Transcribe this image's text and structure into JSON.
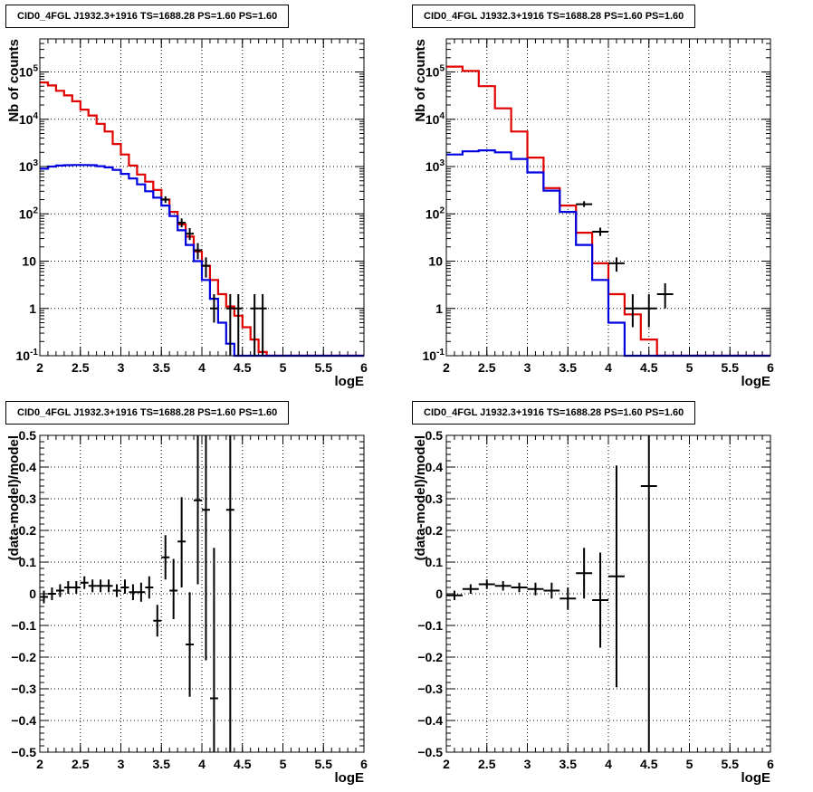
{
  "chart_data": [
    {
      "type": "step",
      "title": "CID0_4FGL J1932.3+1916 TS=1688.28 PS=1.60 PS=1.60",
      "xlabel": "logE",
      "ylabel": "Nb of counts",
      "xlim": [
        2,
        6
      ],
      "ylim": [
        0.1,
        500000
      ],
      "yscale": "log",
      "grid": true,
      "x_ticks": [
        "2",
        "2.5",
        "3",
        "3.5",
        "4",
        "4.5",
        "5",
        "5.5",
        "6"
      ],
      "y_ticks": [
        {
          "v": 0.1,
          "t": "10",
          "sup": "-1"
        },
        {
          "v": 1,
          "t": "1",
          "sup": ""
        },
        {
          "v": 10,
          "t": "10",
          "sup": ""
        },
        {
          "v": 100,
          "t": "10",
          "sup": "2"
        },
        {
          "v": 1000,
          "t": "10",
          "sup": "3"
        },
        {
          "v": 10000,
          "t": "10",
          "sup": "4"
        },
        {
          "v": 100000,
          "t": "10",
          "sup": "5"
        }
      ],
      "series": [
        {
          "color": "#e00000",
          "kind": "step",
          "edges": [
            2.0,
            2.1,
            2.2,
            2.3,
            2.4,
            2.5,
            2.6,
            2.7,
            2.8,
            2.9,
            3.0,
            3.1,
            3.2,
            3.3,
            3.4,
            3.5,
            3.6,
            3.7,
            3.8,
            3.9,
            4.0,
            4.1,
            4.2,
            4.3,
            4.4,
            4.5,
            4.6,
            4.7,
            4.8,
            4.9,
            5.0,
            5.1,
            5.2,
            5.3,
            5.4,
            5.5,
            5.6,
            5.7,
            5.8,
            5.9,
            6.0
          ],
          "values": [
            60000,
            52000,
            40000,
            32000,
            24000,
            16000,
            12000,
            8000,
            5500,
            3000,
            1800,
            1050,
            680,
            480,
            320,
            200,
            110,
            60,
            33,
            16,
            8,
            4,
            2.0,
            1.1,
            0.7,
            0.4,
            0.22,
            0.12,
            0.1,
            0.1,
            0.1,
            0.1,
            0.1,
            0.1,
            0.1,
            0.1,
            0.1,
            0.1,
            0.1,
            0.1
          ]
        },
        {
          "color": "#0000e0",
          "kind": "step",
          "edges": [
            2.0,
            2.1,
            2.2,
            2.3,
            2.4,
            2.5,
            2.6,
            2.7,
            2.8,
            2.9,
            3.0,
            3.1,
            3.2,
            3.3,
            3.4,
            3.5,
            3.6,
            3.7,
            3.8,
            3.9,
            4.0,
            4.1,
            4.2,
            4.3,
            4.4,
            4.5,
            4.6,
            4.7,
            4.8,
            4.9,
            5.0,
            5.1,
            5.2,
            5.3,
            5.4,
            5.5,
            5.6,
            5.7,
            5.8,
            5.9,
            6.0
          ],
          "values": [
            900,
            1000,
            1050,
            1070,
            1080,
            1080,
            1070,
            1020,
            960,
            850,
            700,
            560,
            420,
            300,
            220,
            150,
            90,
            45,
            22,
            10,
            4,
            1.6,
            0.5,
            0.18,
            0.1,
            0.1,
            0.1,
            0.1,
            0.1,
            0.1,
            0.1,
            0.1,
            0.1,
            0.1,
            0.1,
            0.1,
            0.1,
            0.1,
            0.1,
            0.1
          ]
        },
        {
          "color": "#000000",
          "kind": "points",
          "points": [
            {
              "x": 3.55,
              "y": 200,
              "xerr": 0.05,
              "ylo": 170,
              "yhi": 235
            },
            {
              "x": 3.75,
              "y": 65,
              "xerr": 0.05,
              "ylo": 52,
              "yhi": 80
            },
            {
              "x": 3.85,
              "y": 38,
              "xerr": 0.05,
              "ylo": 28,
              "yhi": 50
            },
            {
              "x": 3.95,
              "y": 17,
              "xerr": 0.05,
              "ylo": 11,
              "yhi": 24
            },
            {
              "x": 4.05,
              "y": 8,
              "xerr": 0.05,
              "ylo": 4.5,
              "yhi": 12
            },
            {
              "x": 4.15,
              "y": 1.0,
              "xerr": 0.05,
              "ylo": 0.5,
              "yhi": 2.0
            },
            {
              "x": 4.35,
              "y": 1.0,
              "xerr": 0.05,
              "ylo": 0.1,
              "yhi": 2.0
            },
            {
              "x": 4.45,
              "y": 1.0,
              "xerr": 0.05,
              "ylo": 0.1,
              "yhi": 2.0
            },
            {
              "x": 4.65,
              "y": 1.0,
              "xerr": 0.05,
              "ylo": 0.1,
              "yhi": 2.0
            },
            {
              "x": 4.75,
              "y": 1.0,
              "xerr": 0.05,
              "ylo": 0.1,
              "yhi": 2.0
            }
          ]
        }
      ]
    },
    {
      "type": "step",
      "title": "CID0_4FGL J1932.3+1916 TS=1688.28 PS=1.60 PS=1.60",
      "xlabel": "logE",
      "ylabel": "Nb of counts",
      "xlim": [
        2,
        6
      ],
      "ylim": [
        0.1,
        500000
      ],
      "yscale": "log",
      "grid": true,
      "x_ticks": [
        "2",
        "2.5",
        "3",
        "3.5",
        "4",
        "4.5",
        "5",
        "5.5",
        "6"
      ],
      "y_ticks": [
        {
          "v": 0.1,
          "t": "10",
          "sup": "-1"
        },
        {
          "v": 1,
          "t": "1",
          "sup": ""
        },
        {
          "v": 10,
          "t": "10",
          "sup": ""
        },
        {
          "v": 100,
          "t": "10",
          "sup": "2"
        },
        {
          "v": 1000,
          "t": "10",
          "sup": "3"
        },
        {
          "v": 10000,
          "t": "10",
          "sup": "4"
        },
        {
          "v": 100000,
          "t": "10",
          "sup": "5"
        }
      ],
      "series": [
        {
          "color": "#e00000",
          "kind": "step",
          "edges": [
            2.0,
            2.2,
            2.4,
            2.6,
            2.8,
            3.0,
            3.2,
            3.4,
            3.6,
            3.8,
            4.0,
            4.2,
            4.4,
            4.6,
            4.8,
            5.0,
            5.2,
            5.4,
            5.6,
            5.8,
            6.0
          ],
          "values": [
            130000,
            105000,
            50000,
            17000,
            5500,
            1550,
            350,
            150,
            40,
            9,
            2,
            0.75,
            0.22,
            0.1,
            0.1,
            0.1,
            0.1,
            0.1,
            0.1,
            0.1
          ]
        },
        {
          "color": "#0000e0",
          "kind": "step",
          "edges": [
            2.0,
            2.2,
            2.4,
            2.6,
            2.8,
            3.0,
            3.2,
            3.4,
            3.6,
            3.8,
            4.0,
            4.2,
            4.4,
            4.6,
            4.8,
            5.0,
            5.2,
            5.4,
            5.6,
            5.8,
            6.0
          ],
          "values": [
            1800,
            2100,
            2200,
            2000,
            1450,
            750,
            310,
            110,
            22,
            4,
            0.5,
            0.1,
            0.1,
            0.1,
            0.1,
            0.1,
            0.1,
            0.1,
            0.1,
            0.1
          ]
        },
        {
          "color": "#000000",
          "kind": "points",
          "points": [
            {
              "x": 3.7,
              "y": 160,
              "xerr": 0.1,
              "ylo": 140,
              "yhi": 185
            },
            {
              "x": 3.9,
              "y": 42,
              "xerr": 0.1,
              "ylo": 34,
              "yhi": 51
            },
            {
              "x": 4.1,
              "y": 9,
              "xerr": 0.1,
              "ylo": 6,
              "yhi": 12
            },
            {
              "x": 4.3,
              "y": 1.0,
              "xerr": 0.1,
              "ylo": 0.4,
              "yhi": 2.0
            },
            {
              "x": 4.5,
              "y": 1.0,
              "xerr": 0.1,
              "ylo": 0.4,
              "yhi": 2.0
            },
            {
              "x": 4.7,
              "y": 2.0,
              "xerr": 0.1,
              "ylo": 1.0,
              "yhi": 3.4
            }
          ]
        }
      ]
    },
    {
      "type": "scatter",
      "title": "CID0_4FGL J1932.3+1916 TS=1688.28 PS=1.60 PS=1.60",
      "xlabel": "logE",
      "ylabel": "(data-model)/model",
      "xlim": [
        2,
        6
      ],
      "ylim": [
        -0.5,
        0.5
      ],
      "yscale": "linear",
      "grid": true,
      "x_ticks": [
        "2",
        "2.5",
        "3",
        "3.5",
        "4",
        "4.5",
        "5",
        "5.5",
        "6"
      ],
      "y_ticks": [
        {
          "v": -0.5,
          "t": "−0.5",
          "sup": ""
        },
        {
          "v": -0.4,
          "t": "−0.4",
          "sup": ""
        },
        {
          "v": -0.3,
          "t": "−0.3",
          "sup": ""
        },
        {
          "v": -0.2,
          "t": "−0.2",
          "sup": ""
        },
        {
          "v": -0.1,
          "t": "−0.1",
          "sup": ""
        },
        {
          "v": 0,
          "t": "0",
          "sup": ""
        },
        {
          "v": 0.1,
          "t": "0.1",
          "sup": ""
        },
        {
          "v": 0.2,
          "t": "0.2",
          "sup": ""
        },
        {
          "v": 0.3,
          "t": "0.3",
          "sup": ""
        },
        {
          "v": 0.4,
          "t": "0.4",
          "sup": ""
        },
        {
          "v": 0.5,
          "t": "0.5",
          "sup": ""
        }
      ],
      "series": [
        {
          "color": "#000000",
          "kind": "points",
          "points": [
            {
              "x": 2.05,
              "y": -0.01,
              "xerr": 0.05,
              "ylo": -0.03,
              "yhi": 0.01
            },
            {
              "x": 2.15,
              "y": 0.0,
              "xerr": 0.05,
              "ylo": -0.02,
              "yhi": 0.02
            },
            {
              "x": 2.25,
              "y": 0.01,
              "xerr": 0.05,
              "ylo": -0.01,
              "yhi": 0.03
            },
            {
              "x": 2.35,
              "y": 0.02,
              "xerr": 0.05,
              "ylo": 0.0,
              "yhi": 0.04
            },
            {
              "x": 2.45,
              "y": 0.02,
              "xerr": 0.05,
              "ylo": 0.0,
              "yhi": 0.04
            },
            {
              "x": 2.55,
              "y": 0.035,
              "xerr": 0.05,
              "ylo": 0.015,
              "yhi": 0.055
            },
            {
              "x": 2.65,
              "y": 0.025,
              "xerr": 0.05,
              "ylo": 0.005,
              "yhi": 0.045
            },
            {
              "x": 2.75,
              "y": 0.025,
              "xerr": 0.05,
              "ylo": 0.005,
              "yhi": 0.045
            },
            {
              "x": 2.85,
              "y": 0.025,
              "xerr": 0.05,
              "ylo": 0.005,
              "yhi": 0.045
            },
            {
              "x": 2.95,
              "y": 0.01,
              "xerr": 0.05,
              "ylo": -0.01,
              "yhi": 0.03
            },
            {
              "x": 3.05,
              "y": 0.02,
              "xerr": 0.05,
              "ylo": 0.0,
              "yhi": 0.045
            },
            {
              "x": 3.15,
              "y": 0.005,
              "xerr": 0.05,
              "ylo": -0.02,
              "yhi": 0.03
            },
            {
              "x": 3.25,
              "y": 0.005,
              "xerr": 0.05,
              "ylo": -0.025,
              "yhi": 0.035
            },
            {
              "x": 3.35,
              "y": 0.02,
              "xerr": 0.05,
              "ylo": -0.015,
              "yhi": 0.055
            },
            {
              "x": 3.45,
              "y": -0.085,
              "xerr": 0.05,
              "ylo": -0.135,
              "yhi": -0.035
            },
            {
              "x": 3.55,
              "y": 0.115,
              "xerr": 0.05,
              "ylo": 0.045,
              "yhi": 0.185
            },
            {
              "x": 3.65,
              "y": 0.01,
              "xerr": 0.05,
              "ylo": -0.08,
              "yhi": 0.11
            },
            {
              "x": 3.75,
              "y": 0.165,
              "xerr": 0.05,
              "ylo": 0.02,
              "yhi": 0.305
            },
            {
              "x": 3.85,
              "y": -0.16,
              "xerr": 0.05,
              "ylo": -0.325,
              "yhi": 0.005
            },
            {
              "x": 3.95,
              "y": 0.295,
              "xerr": 0.05,
              "ylo": 0.03,
              "yhi": 0.5
            },
            {
              "x": 4.05,
              "y": 0.265,
              "xerr": 0.05,
              "ylo": -0.21,
              "yhi": 0.5
            },
            {
              "x": 4.15,
              "y": -0.33,
              "xerr": 0.05,
              "ylo": -0.5,
              "yhi": 0.145
            },
            {
              "x": 4.35,
              "y": 0.265,
              "xerr": 0.05,
              "ylo": -0.5,
              "yhi": 0.5
            }
          ]
        }
      ]
    },
    {
      "type": "scatter",
      "title": "CID0_4FGL J1932.3+1916 TS=1688.28 PS=1.60 PS=1.60",
      "xlabel": "logE",
      "ylabel": "(data-model)/model",
      "xlim": [
        2,
        6
      ],
      "ylim": [
        -0.5,
        0.5
      ],
      "yscale": "linear",
      "grid": true,
      "x_ticks": [
        "2",
        "2.5",
        "3",
        "3.5",
        "4",
        "4.5",
        "5",
        "5.5",
        "6"
      ],
      "y_ticks": [
        {
          "v": -0.5,
          "t": "−0.5",
          "sup": ""
        },
        {
          "v": -0.4,
          "t": "−0.4",
          "sup": ""
        },
        {
          "v": -0.3,
          "t": "−0.3",
          "sup": ""
        },
        {
          "v": -0.2,
          "t": "−0.2",
          "sup": ""
        },
        {
          "v": -0.1,
          "t": "−0.1",
          "sup": ""
        },
        {
          "v": 0,
          "t": "0",
          "sup": ""
        },
        {
          "v": 0.1,
          "t": "0.1",
          "sup": ""
        },
        {
          "v": 0.2,
          "t": "0.2",
          "sup": ""
        },
        {
          "v": 0.3,
          "t": "0.3",
          "sup": ""
        },
        {
          "v": 0.4,
          "t": "0.4",
          "sup": ""
        },
        {
          "v": 0.5,
          "t": "0.5",
          "sup": ""
        }
      ],
      "series": [
        {
          "color": "#000000",
          "kind": "points",
          "points": [
            {
              "x": 2.1,
              "y": -0.005,
              "xerr": 0.1,
              "ylo": -0.02,
              "yhi": 0.01
            },
            {
              "x": 2.3,
              "y": 0.015,
              "xerr": 0.1,
              "ylo": 0.0,
              "yhi": 0.03
            },
            {
              "x": 2.5,
              "y": 0.03,
              "xerr": 0.1,
              "ylo": 0.015,
              "yhi": 0.045
            },
            {
              "x": 2.7,
              "y": 0.025,
              "xerr": 0.1,
              "ylo": 0.01,
              "yhi": 0.04
            },
            {
              "x": 2.9,
              "y": 0.02,
              "xerr": 0.1,
              "ylo": 0.005,
              "yhi": 0.035
            },
            {
              "x": 3.1,
              "y": 0.015,
              "xerr": 0.1,
              "ylo": -0.005,
              "yhi": 0.035
            },
            {
              "x": 3.3,
              "y": 0.01,
              "xerr": 0.1,
              "ylo": -0.015,
              "yhi": 0.035
            },
            {
              "x": 3.5,
              "y": -0.015,
              "xerr": 0.1,
              "ylo": -0.05,
              "yhi": 0.02
            },
            {
              "x": 3.7,
              "y": 0.065,
              "xerr": 0.1,
              "ylo": -0.015,
              "yhi": 0.145
            },
            {
              "x": 3.9,
              "y": -0.02,
              "xerr": 0.1,
              "ylo": -0.17,
              "yhi": 0.13
            },
            {
              "x": 4.1,
              "y": 0.055,
              "xerr": 0.1,
              "ylo": -0.295,
              "yhi": 0.405
            },
            {
              "x": 4.5,
              "y": 0.34,
              "xerr": 0.1,
              "ylo": -0.5,
              "yhi": 0.5
            }
          ]
        }
      ]
    }
  ]
}
